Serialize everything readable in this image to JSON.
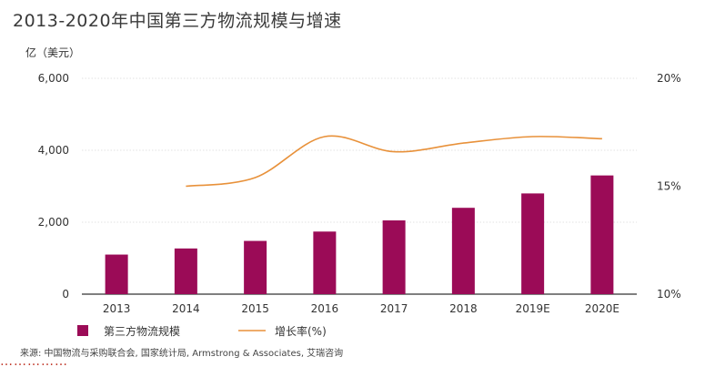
{
  "title": "2013-2020年中国第三方物流规模与增速",
  "source": "来源: 中国物流与采购联合会, 国家统计局, Armstrong & Associates, 艾瑞咨询",
  "colors": {
    "bar": "#9b0b57",
    "line": "#e8913a",
    "grid": "#d9d9d9",
    "axis": "#333333"
  },
  "chart_data": {
    "type": "bar",
    "categories": [
      "2013",
      "2014",
      "2015",
      "2016",
      "2017",
      "2018",
      "2019E",
      "2020E"
    ],
    "series": [
      {
        "name": "第三方物流规模",
        "type": "bar",
        "axis": "left",
        "values": [
          1100,
          1270,
          1480,
          1740,
          2050,
          2400,
          2800,
          3300
        ]
      },
      {
        "name": "增长率(%)",
        "type": "line",
        "axis": "right",
        "values": [
          null,
          15.0,
          15.4,
          17.3,
          16.6,
          17.0,
          17.3,
          17.2
        ]
      }
    ],
    "ylabel": "亿（美元）",
    "ylim": [
      0,
      6000
    ],
    "y_ticks": [
      "0",
      "2,000",
      "4,000",
      "6,000"
    ],
    "y_tick_values": [
      0,
      2000,
      4000,
      6000
    ],
    "y2lim": [
      10,
      20
    ],
    "y2_ticks": [
      "10%",
      "15%",
      "20%"
    ],
    "y2_tick_values": [
      10,
      15,
      20
    ],
    "grid": true,
    "legend_position": "bottom-left"
  }
}
